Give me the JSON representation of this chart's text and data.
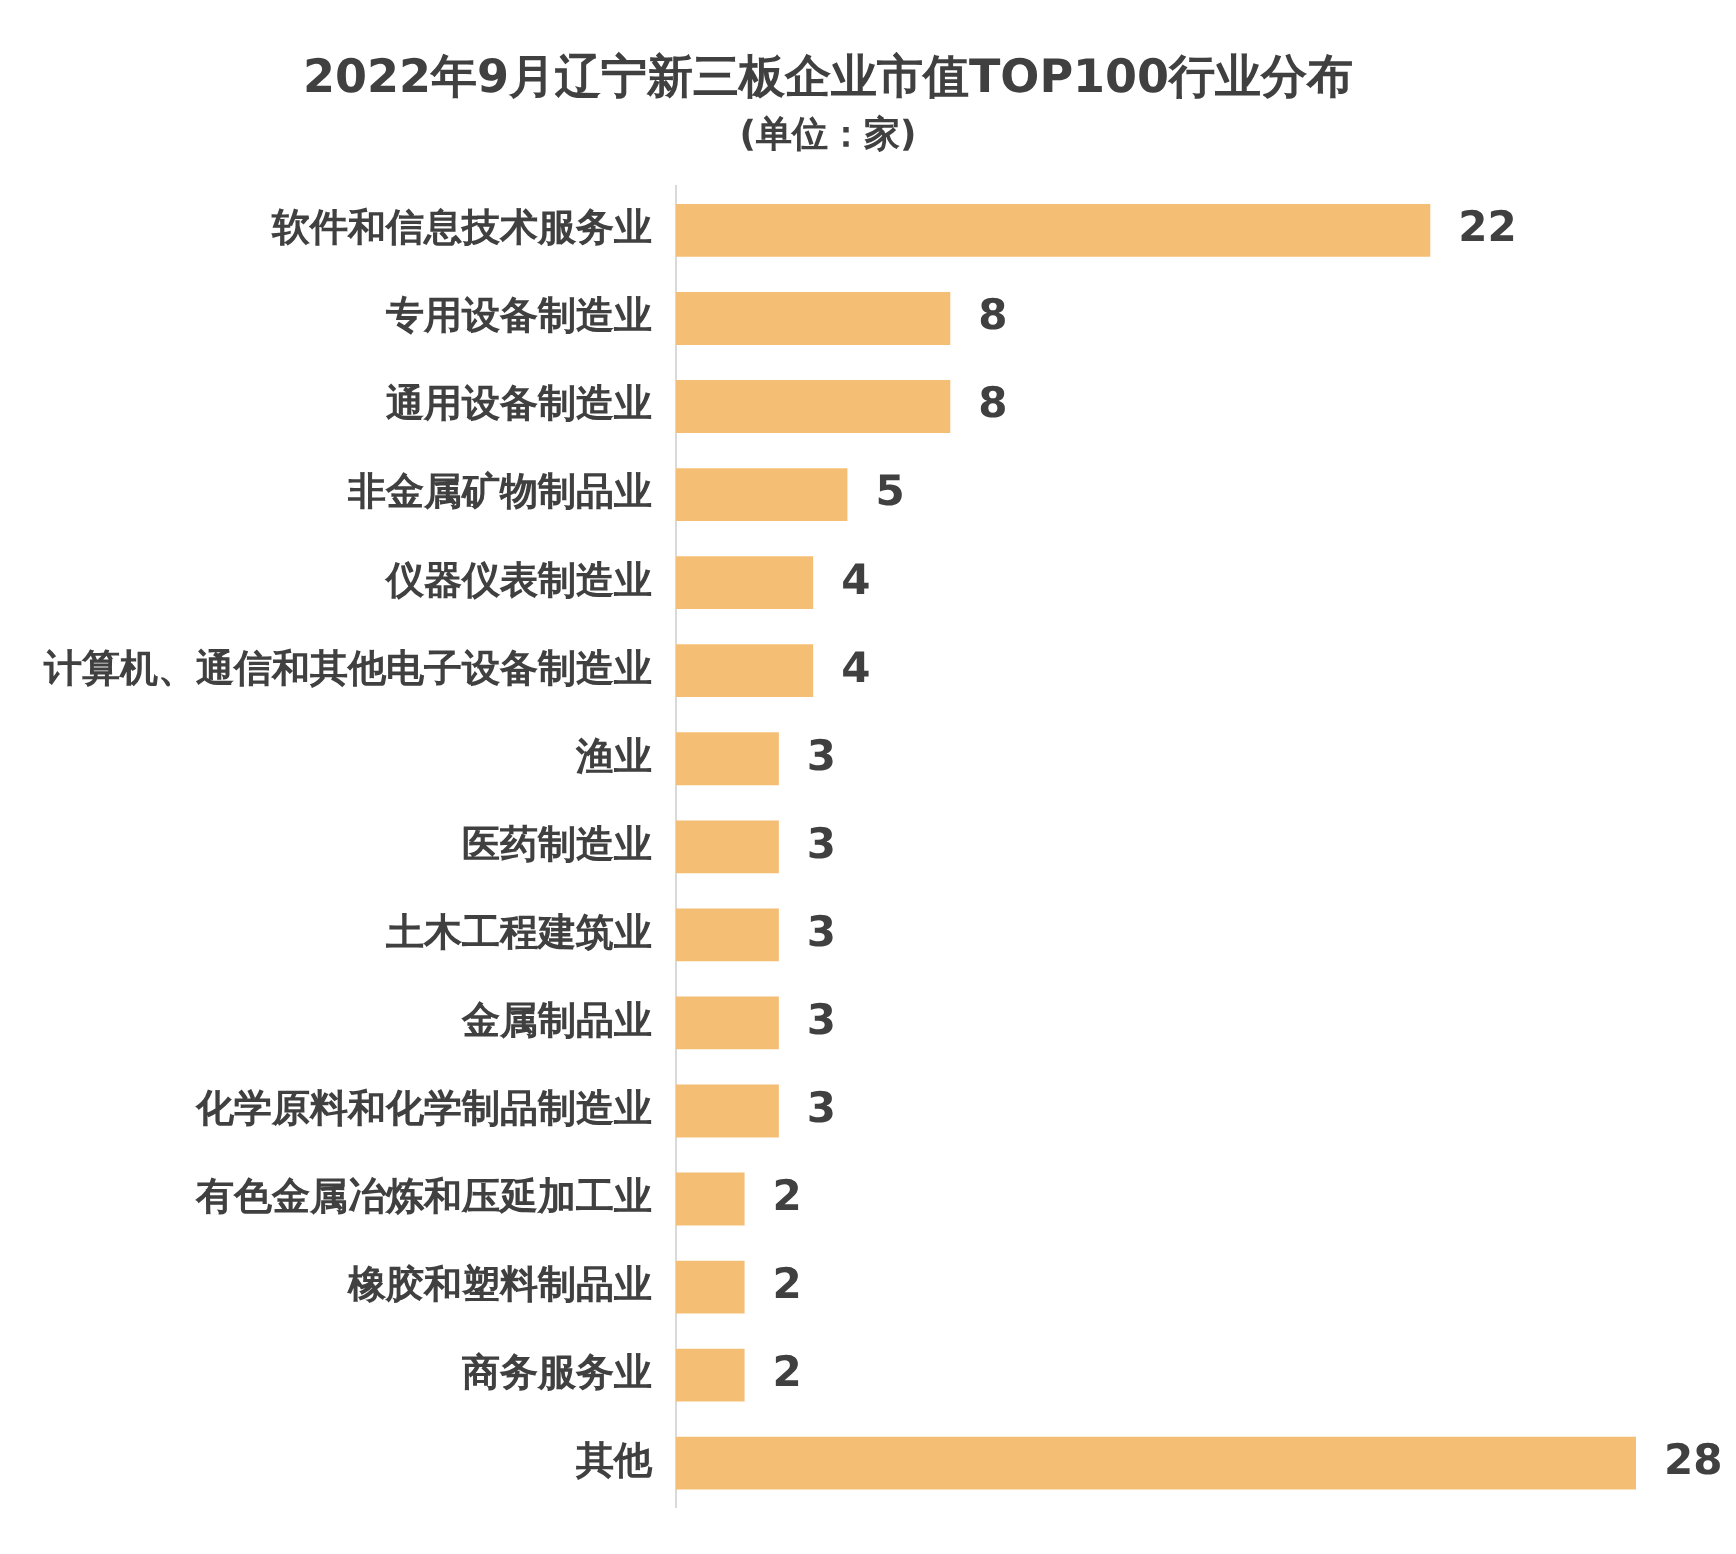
{
  "chart_data": {
    "type": "bar",
    "orientation": "horizontal",
    "title": "2022年9月辽宁新三板企业市值TOP100行业分布",
    "subtitle": "(单位：家)",
    "categories": [
      "软件和信息技术服务业",
      "专用设备制造业",
      "通用设备制造业",
      "非金属矿物制品业",
      "仪器仪表制造业",
      "计算机、通信和其他电子设备制造业",
      "渔业",
      "医药制造业",
      "土木工程建筑业",
      "金属制品业",
      "化学原料和化学制品制造业",
      "有色金属冶炼和压延加工业",
      "橡胶和塑料制品业",
      "商务服务业",
      "其他"
    ],
    "values": [
      22,
      8,
      8,
      5,
      4,
      4,
      3,
      3,
      3,
      3,
      3,
      2,
      2,
      2,
      28
    ],
    "color": "#f4bf75",
    "xlim": [
      0,
      28
    ],
    "data_labels": true,
    "tick_labels": "y"
  }
}
